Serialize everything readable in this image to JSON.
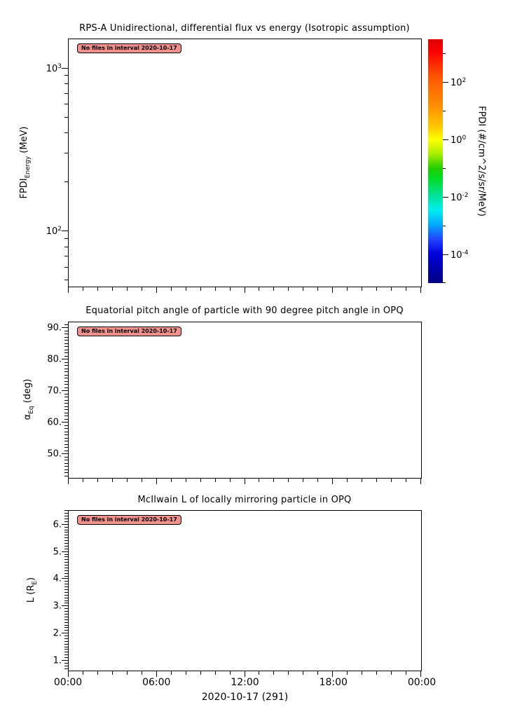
{
  "figure": {
    "background_color": "#ffffff",
    "text_color": "#000000",
    "annotation": {
      "text": "No files in interval 2020-10-17",
      "bg_color": "#f2918c",
      "border_color": "#000000"
    },
    "xaxis": {
      "lim": [
        0,
        24
      ],
      "major_tick_values": [
        0,
        6,
        12,
        18,
        24
      ],
      "labels": [
        "00:00",
        "06:00",
        "12:00",
        "18:00",
        "00:00"
      ],
      "minor_step": 1,
      "title": "2020-10-17 (291)"
    }
  },
  "chart_data": [
    {
      "type": "heatmap",
      "title": "RPS-A Unidirectional, differential flux vs energy (Isotropic assumption)",
      "ylabel": {
        "pre": "FPDI",
        "sub": "Energy",
        "post": " (MeV)"
      },
      "yscale": "log",
      "ylim": [
        45.8,
        1514
      ],
      "ytick_values": [
        1000,
        100
      ],
      "ytick_labels": [
        "10^3",
        "10^2"
      ],
      "series": [],
      "note": "No files in interval 2020-10-17",
      "colorbar": {
        "label": "FPDI (#/cm^2/s/sr/MeV)",
        "scale": "log",
        "lim": [
          1.05e-05,
          3250
        ],
        "tick_values": [
          100,
          1,
          0.01,
          0.0001
        ],
        "tick_labels": [
          "10^2",
          "10^0",
          "10^-2",
          "10^-4"
        ],
        "minor_tick_values": [
          1000,
          10,
          0.1,
          0.001,
          1e-05
        ],
        "gradient": [
          {
            "pos": 0,
            "color": "#dd0000"
          },
          {
            "pos": 5,
            "color": "#ff0000"
          },
          {
            "pos": 16,
            "color": "#ff5a00"
          },
          {
            "pos": 27,
            "color": "#ff8c00"
          },
          {
            "pos": 36,
            "color": "#ffc800"
          },
          {
            "pos": 41,
            "color": "#ffff00"
          },
          {
            "pos": 47,
            "color": "#aaee00"
          },
          {
            "pos": 53,
            "color": "#22cc00"
          },
          {
            "pos": 57,
            "color": "#00dd22"
          },
          {
            "pos": 63,
            "color": "#00e087"
          },
          {
            "pos": 70,
            "color": "#00eeee"
          },
          {
            "pos": 76,
            "color": "#00aaff"
          },
          {
            "pos": 82,
            "color": "#2244ff"
          },
          {
            "pos": 88,
            "color": "#0000dd"
          },
          {
            "pos": 100,
            "color": "#000080"
          }
        ]
      }
    },
    {
      "type": "line",
      "title": "Equatorial pitch angle of particle with 90 degree pitch angle in OPQ",
      "ylabel": {
        "pre": "α",
        "sub": "Eq",
        "post": " (deg)"
      },
      "yscale": "linear",
      "ylim": [
        42.5,
        91.8
      ],
      "ytick_values": [
        90,
        80,
        70,
        60,
        50
      ],
      "ytick_labels": [
        "90.",
        "80.",
        "70.",
        "60.",
        "50."
      ],
      "yminor_step": 1,
      "series": [],
      "note": "No files in interval 2020-10-17"
    },
    {
      "type": "line",
      "title": "McIlwain L of locally mirroring particle in OPQ",
      "ylabel": {
        "pre": "L (R",
        "sub": "E",
        "post": ")"
      },
      "yscale": "linear",
      "ylim": [
        0.64,
        6.51
      ],
      "ytick_values": [
        6,
        5,
        4,
        3,
        2,
        1
      ],
      "ytick_labels": [
        "6.",
        "5.",
        "4.",
        "3.",
        "2.",
        "1."
      ],
      "yminor_step": 0.1,
      "series": [],
      "note": "No files in interval 2020-10-17"
    }
  ]
}
